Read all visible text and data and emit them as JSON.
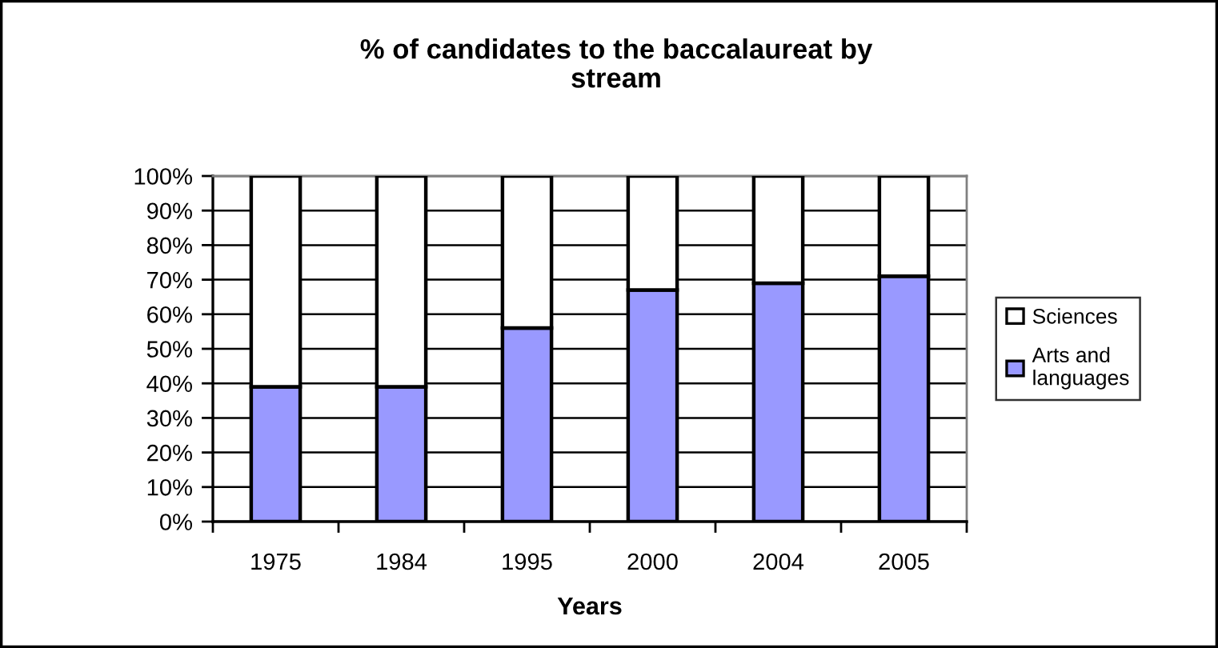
{
  "chart_data": {
    "type": "bar",
    "title": "% of candidates to the baccalaureat by\nstream",
    "xlabel": "Years",
    "categories": [
      "1975",
      "1984",
      "1995",
      "2000",
      "2004",
      "2005"
    ],
    "stacked": true,
    "series": [
      {
        "name": "Arts and\nlanguages",
        "color": "#9999ff",
        "values": [
          39,
          39,
          56,
          67,
          69,
          71
        ]
      },
      {
        "name": "Sciences",
        "color": "#ffffff",
        "values": [
          61,
          61,
          44,
          33,
          31,
          29
        ]
      }
    ],
    "ylim": [
      0,
      100
    ],
    "yticks": [
      {
        "value": 0,
        "label": "0%"
      },
      {
        "value": 10,
        "label": "10%"
      },
      {
        "value": 20,
        "label": "20%"
      },
      {
        "value": 30,
        "label": "30%"
      },
      {
        "value": 40,
        "label": "40%"
      },
      {
        "value": 50,
        "label": "50%"
      },
      {
        "value": 60,
        "label": "60%"
      },
      {
        "value": 70,
        "label": "70%"
      },
      {
        "value": 80,
        "label": "80%"
      },
      {
        "value": 90,
        "label": "90%"
      },
      {
        "value": 100,
        "label": "100%"
      }
    ],
    "grid": "y",
    "legend": "right"
  }
}
